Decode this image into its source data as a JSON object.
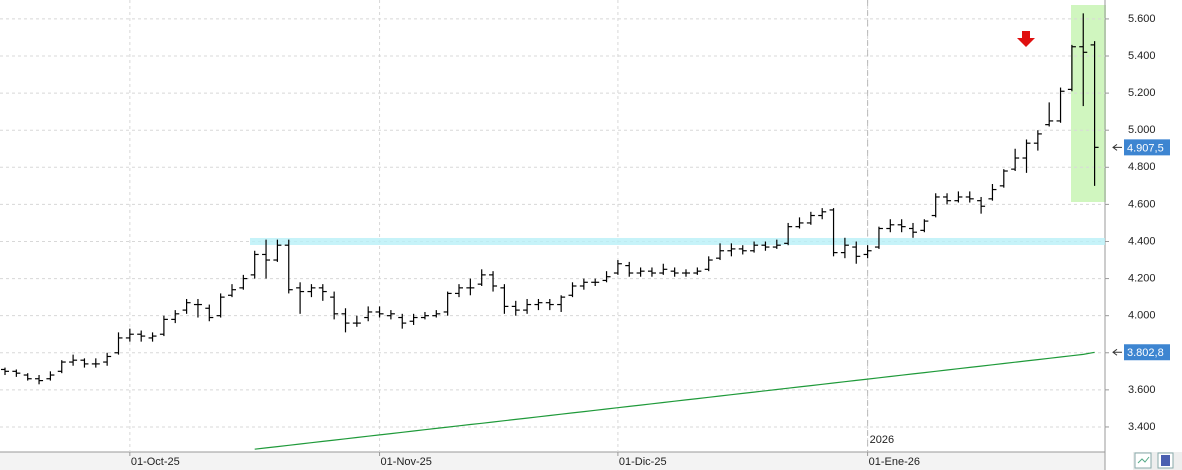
{
  "chart_data": {
    "type": "ohlc",
    "categories": [
      null,
      null,
      null,
      null,
      null,
      null,
      null,
      null,
      null,
      null,
      null,
      "01-Oct-25",
      null,
      null,
      null,
      null,
      null,
      null,
      null,
      null,
      null,
      null,
      null,
      null,
      null,
      null,
      null,
      null,
      null,
      null,
      null,
      null,
      null,
      "01-Nov-25",
      null,
      null,
      null,
      null,
      null,
      null,
      null,
      null,
      null,
      null,
      null,
      null,
      null,
      null,
      null,
      null,
      null,
      null,
      null,
      null,
      "01-Dic-25",
      null,
      null,
      null,
      null,
      null,
      null,
      null,
      null,
      null,
      null,
      null,
      null,
      null,
      null,
      null,
      null,
      null,
      null,
      null,
      null,
      null,
      "01-Ene-26",
      null,
      null,
      null,
      null,
      null,
      null,
      null,
      null,
      null,
      null,
      null,
      null,
      null,
      null,
      null,
      null,
      null,
      null,
      null,
      null
    ],
    "year_label": "2026",
    "series": [
      {
        "color": "#000000",
        "last_label": "4.907,5",
        "label_color": "#3d85d1",
        "open": [
          3710,
          3700,
          3680,
          3660,
          3660,
          3700,
          3750,
          3760,
          3740,
          3750,
          3800,
          3880,
          3900,
          3880,
          3900,
          3980,
          4030,
          4060,
          4040,
          4000,
          4110,
          4150,
          4220,
          4330,
          4300,
          4380,
          4150,
          4130,
          4150,
          4100,
          4010,
          3960,
          3990,
          4020,
          4000,
          3990,
          3970,
          3990,
          4000,
          4020,
          4120,
          4150,
          4170,
          4220,
          4150,
          4050,
          4030,
          4060,
          4070,
          4060,
          4110,
          4160,
          4180,
          4190,
          4230,
          4270,
          4230,
          4240,
          4230,
          4240,
          4230,
          4230,
          4250,
          4310,
          4350,
          4360,
          4350,
          4380,
          4370,
          4390,
          4480,
          4500,
          4540,
          4570,
          4340,
          4370,
          4330,
          4370,
          4470,
          4490,
          4470,
          4460,
          4540,
          4640,
          4620,
          4640,
          4620,
          4630,
          4700,
          4790,
          4850,
          4930,
          5030,
          5050,
          5220,
          5450,
          5460
        ],
        "high": [
          3720,
          3710,
          3690,
          3680,
          3700,
          3760,
          3790,
          3770,
          3770,
          3800,
          3910,
          3930,
          3920,
          3910,
          4000,
          4030,
          4090,
          4090,
          4060,
          4120,
          4170,
          4220,
          4350,
          4410,
          4410,
          4410,
          4180,
          4170,
          4170,
          4130,
          4040,
          4000,
          4050,
          4050,
          4030,
          4010,
          4010,
          4020,
          4030,
          4130,
          4170,
          4200,
          4250,
          4240,
          4170,
          4080,
          4090,
          4090,
          4090,
          4110,
          4180,
          4200,
          4200,
          4240,
          4300,
          4290,
          4260,
          4260,
          4280,
          4260,
          4250,
          4260,
          4320,
          4390,
          4390,
          4380,
          4400,
          4400,
          4410,
          4500,
          4530,
          4560,
          4580,
          4580,
          4420,
          4400,
          4380,
          4480,
          4520,
          4520,
          4500,
          4520,
          4660,
          4660,
          4670,
          4670,
          4640,
          4710,
          4790,
          4900,
          4950,
          5000,
          5150,
          5230,
          5460,
          5630,
          5480
        ],
        "low": [
          3680,
          3670,
          3650,
          3630,
          3650,
          3690,
          3730,
          3720,
          3720,
          3730,
          3790,
          3860,
          3860,
          3860,
          3890,
          3960,
          4010,
          3990,
          3970,
          3990,
          4100,
          4140,
          4200,
          4200,
          4290,
          4120,
          4010,
          4100,
          4080,
          3980,
          3910,
          3940,
          3970,
          3990,
          3980,
          3930,
          3950,
          3980,
          3990,
          4000,
          4100,
          4110,
          4160,
          4130,
          4010,
          4000,
          4010,
          4030,
          4030,
          4020,
          4100,
          4140,
          4160,
          4180,
          4220,
          4210,
          4210,
          4210,
          4220,
          4210,
          4210,
          4220,
          4240,
          4300,
          4320,
          4330,
          4340,
          4350,
          4360,
          4380,
          4470,
          4490,
          4520,
          4320,
          4310,
          4280,
          4310,
          4360,
          4450,
          4450,
          4420,
          4450,
          4530,
          4600,
          4610,
          4610,
          4550,
          4620,
          4690,
          4780,
          4770,
          4890,
          5020,
          5040,
          5210,
          5130,
          4700
        ],
        "close": [
          3700,
          3690,
          3660,
          3650,
          3680,
          3750,
          3760,
          3740,
          3740,
          3780,
          3880,
          3900,
          3890,
          3890,
          3980,
          4010,
          4070,
          4060,
          3990,
          4100,
          4140,
          4200,
          4330,
          4300,
          4380,
          4140,
          4130,
          4150,
          4130,
          4010,
          3960,
          3960,
          4020,
          4010,
          4010,
          3960,
          3990,
          4000,
          4010,
          4120,
          4150,
          4150,
          4220,
          4160,
          4050,
          4030,
          4060,
          4070,
          4060,
          4100,
          4160,
          4180,
          4180,
          4210,
          4280,
          4230,
          4240,
          4230,
          4250,
          4230,
          4230,
          4240,
          4300,
          4350,
          4360,
          4350,
          4380,
          4370,
          4380,
          4480,
          4500,
          4540,
          4560,
          4340,
          4380,
          4320,
          4350,
          4470,
          4490,
          4480,
          4450,
          4510,
          4640,
          4620,
          4640,
          4630,
          4590,
          4680,
          4780,
          4850,
          4930,
          4980,
          5050,
          5210,
          5450,
          5420,
          4907.5
        ]
      },
      {
        "type": "line",
        "color": "#1f9a3a",
        "last_label": "3.802,8",
        "label_color": "#3d85d1",
        "values": [
          null,
          null,
          null,
          null,
          null,
          null,
          null,
          null,
          null,
          null,
          null,
          null,
          null,
          null,
          null,
          null,
          null,
          null,
          null,
          null,
          null,
          null,
          3280,
          3287,
          3294,
          3301,
          3308,
          3315,
          3322,
          3329,
          3336,
          3343,
          3350,
          3357,
          3364,
          3371,
          3378,
          3385,
          3392,
          3399,
          3406,
          3413,
          3420,
          3427,
          3434,
          3441,
          3448,
          3455,
          3462,
          3469,
          3476,
          3483,
          3490,
          3497,
          3504,
          3511,
          3518,
          3525,
          3532,
          3539,
          3546,
          3553,
          3560,
          3567,
          3574,
          3581,
          3588,
          3595,
          3602,
          3609,
          3616,
          3623,
          3630,
          3637,
          3644,
          3651,
          3658,
          3665,
          3672,
          3679,
          3686,
          3693,
          3700,
          3707,
          3714,
          3721,
          3728,
          3735,
          3742,
          3749,
          3756,
          3763,
          3770,
          3777,
          3784,
          3791,
          3802.8
        ]
      }
    ],
    "support_level": 4400,
    "ylim": [
      3265,
      5702
    ],
    "yticks": [
      {
        "value": 3400,
        "label": "3.400"
      },
      {
        "value": 3600,
        "label": "3.600"
      },
      {
        "value": 3800,
        "label": "3.800"
      },
      {
        "value": 4000,
        "label": "4.000"
      },
      {
        "value": 4200,
        "label": "4.200"
      },
      {
        "value": 4400,
        "label": "4.400"
      },
      {
        "value": 4600,
        "label": "4.600"
      },
      {
        "value": 4800,
        "label": "4.800"
      },
      {
        "value": 5000,
        "label": "5.000"
      },
      {
        "value": 5200,
        "label": "5.200"
      },
      {
        "value": 5400,
        "label": "5.400"
      },
      {
        "value": 5600,
        "label": "5.600"
      }
    ],
    "grid": true
  }
}
